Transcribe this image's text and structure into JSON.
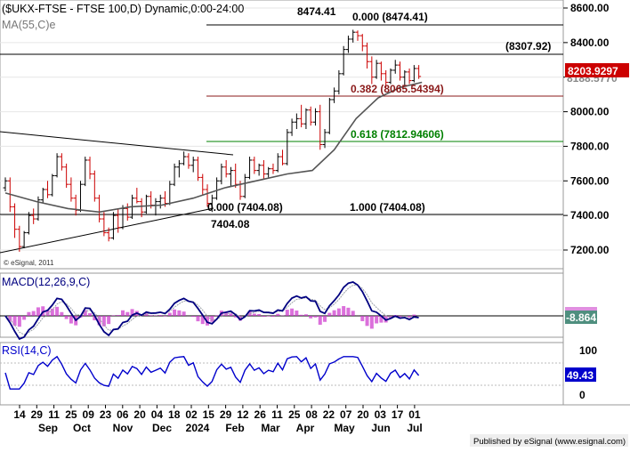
{
  "header": {
    "title": "($UKX-FTSE - FTSE 100,D) Dynamic,0:00-24:00",
    "ma_label": "MA(55,C)e"
  },
  "colors": {
    "up": "#000000",
    "down": "#cc0000",
    "ma": "#555555",
    "macd_line": "#000080",
    "macd_signal": "#9aa0a6",
    "macd_hist": "#cc33cc",
    "rsi": "#0000cc",
    "fib_red": "#8b1a1a",
    "fib_green": "#008000",
    "last_price_bg": "#cc0000"
  },
  "price_axis": {
    "ticks": [
      "8600.00",
      "8400.00",
      "8200.00",
      "8000.00",
      "7800.00",
      "7600.00",
      "7400.00",
      "7200.00"
    ],
    "last_price": "8203.9297",
    "hidden_label": "8188.5770"
  },
  "annotations": {
    "high": "8474.41",
    "low": "7404.08",
    "fib_0_top": "0.000 (8474.41)",
    "fib_382": "0.382 (8065.54394)",
    "fib_618": "0.618 (7812.94606)",
    "fib_0_bottom": "0.000 (7404.08)",
    "fib_1": "1.000 (7404.08)",
    "resistance": "(8307.92)",
    "copyright": "© eSignal, 2011"
  },
  "macd": {
    "label": "MACD(12,26,9,C)",
    "value": "-8.864"
  },
  "rsi": {
    "label": "RSI(14,C)",
    "value": "49.43",
    "ticks": [
      "100",
      "0"
    ]
  },
  "x_axis": {
    "days": [
      "14",
      "29",
      "11",
      "25",
      "09",
      "23",
      "06",
      "20",
      "04",
      "18",
      "02",
      "15",
      "29",
      "12",
      "26",
      "11",
      "25",
      "08",
      "22",
      "07",
      "20",
      "03",
      "17",
      "01"
    ],
    "months": [
      "Sep",
      "Oct",
      "Nov",
      "Dec",
      "2024",
      "Feb",
      "Mar",
      "Apr",
      "May",
      "Jun",
      "Jul"
    ]
  },
  "footer": {
    "published": "Published by eSignal (www.esignal.com)"
  },
  "chart_data": {
    "type": "candlestick",
    "instrument": "FTSE 100",
    "period": "D",
    "ylim": [
      7100,
      8650
    ],
    "indicators": [
      "MA(55,C)e",
      "MACD(12,26,9,C)",
      "RSI(14,C)"
    ],
    "moving_average_55": [
      [
        0,
        7530
      ],
      [
        20,
        7480
      ],
      [
        40,
        7440
      ],
      [
        60,
        7420
      ],
      [
        80,
        7450
      ],
      [
        100,
        7460
      ],
      [
        120,
        7500
      ],
      [
        140,
        7560
      ],
      [
        160,
        7600
      ],
      [
        180,
        7640
      ],
      [
        196,
        7660
      ],
      [
        210,
        7780
      ],
      [
        224,
        7960
      ],
      [
        238,
        8080
      ],
      [
        252,
        8140
      ],
      [
        266,
        8170
      ]
    ],
    "candles": [
      [
        0,
        7560,
        7620,
        7540,
        7600
      ],
      [
        3,
        7600,
        7620,
        7420,
        7450
      ],
      [
        6,
        7450,
        7470,
        7270,
        7320
      ],
      [
        9,
        7320,
        7340,
        7190,
        7220
      ],
      [
        12,
        7220,
        7310,
        7210,
        7300
      ],
      [
        15,
        7300,
        7420,
        7290,
        7400
      ],
      [
        18,
        7400,
        7440,
        7350,
        7380
      ],
      [
        21,
        7380,
        7510,
        7370,
        7490
      ],
      [
        24,
        7490,
        7560,
        7470,
        7550
      ],
      [
        27,
        7550,
        7600,
        7500,
        7520
      ],
      [
        30,
        7520,
        7640,
        7510,
        7630
      ],
      [
        33,
        7630,
        7760,
        7620,
        7740
      ],
      [
        36,
        7740,
        7760,
        7660,
        7680
      ],
      [
        39,
        7680,
        7700,
        7560,
        7580
      ],
      [
        42,
        7580,
        7620,
        7480,
        7500
      ],
      [
        45,
        7500,
        7520,
        7400,
        7430
      ],
      [
        48,
        7430,
        7600,
        7420,
        7580
      ],
      [
        51,
        7580,
        7740,
        7570,
        7720
      ],
      [
        54,
        7720,
        7740,
        7610,
        7640
      ],
      [
        57,
        7640,
        7660,
        7480,
        7500
      ],
      [
        60,
        7500,
        7520,
        7360,
        7380
      ],
      [
        63,
        7380,
        7420,
        7280,
        7300
      ],
      [
        66,
        7300,
        7330,
        7250,
        7270
      ],
      [
        69,
        7270,
        7420,
        7260,
        7400
      ],
      [
        72,
        7400,
        7440,
        7300,
        7330
      ],
      [
        75,
        7330,
        7460,
        7320,
        7440
      ],
      [
        78,
        7440,
        7470,
        7370,
        7390
      ],
      [
        81,
        7390,
        7520,
        7380,
        7500
      ],
      [
        84,
        7500,
        7560,
        7470,
        7480
      ],
      [
        87,
        7480,
        7500,
        7390,
        7420
      ],
      [
        90,
        7420,
        7520,
        7410,
        7510
      ],
      [
        93,
        7510,
        7540,
        7440,
        7460
      ],
      [
        96,
        7460,
        7500,
        7400,
        7480
      ],
      [
        99,
        7480,
        7520,
        7440,
        7500
      ],
      [
        102,
        7500,
        7540,
        7450,
        7470
      ],
      [
        105,
        7470,
        7600,
        7460,
        7580
      ],
      [
        108,
        7580,
        7700,
        7570,
        7680
      ],
      [
        111,
        7680,
        7720,
        7620,
        7700
      ],
      [
        114,
        7700,
        7770,
        7690,
        7740
      ],
      [
        117,
        7740,
        7760,
        7670,
        7690
      ],
      [
        120,
        7690,
        7740,
        7650,
        7720
      ],
      [
        123,
        7720,
        7740,
        7600,
        7620
      ],
      [
        126,
        7620,
        7640,
        7520,
        7550
      ],
      [
        129,
        7550,
        7580,
        7450,
        7470
      ],
      [
        132,
        7470,
        7520,
        7420,
        7500
      ],
      [
        135,
        7500,
        7620,
        7490,
        7600
      ],
      [
        138,
        7600,
        7700,
        7580,
        7680
      ],
      [
        141,
        7680,
        7720,
        7620,
        7640
      ],
      [
        144,
        7640,
        7680,
        7570,
        7660
      ],
      [
        147,
        7660,
        7700,
        7560,
        7580
      ],
      [
        150,
        7580,
        7600,
        7490,
        7510
      ],
      [
        153,
        7510,
        7640,
        7500,
        7620
      ],
      [
        156,
        7620,
        7740,
        7610,
        7720
      ],
      [
        159,
        7720,
        7740,
        7640,
        7660
      ],
      [
        162,
        7660,
        7700,
        7630,
        7690
      ],
      [
        165,
        7690,
        7720,
        7610,
        7640
      ],
      [
        168,
        7640,
        7680,
        7620,
        7670
      ],
      [
        171,
        7670,
        7700,
        7640,
        7660
      ],
      [
        174,
        7660,
        7760,
        7650,
        7740
      ],
      [
        177,
        7740,
        7780,
        7690,
        7700
      ],
      [
        180,
        7700,
        7900,
        7690,
        7880
      ],
      [
        183,
        7880,
        7960,
        7860,
        7940
      ],
      [
        186,
        7940,
        7990,
        7900,
        7960
      ],
      [
        189,
        7960,
        8040,
        7910,
        7930
      ],
      [
        192,
        7930,
        8020,
        7900,
        8010
      ],
      [
        195,
        8010,
        8030,
        7920,
        7940
      ],
      [
        198,
        7940,
        8020,
        7920,
        8000
      ],
      [
        201,
        8000,
        8040,
        7780,
        7810
      ],
      [
        204,
        7810,
        7900,
        7790,
        7880
      ],
      [
        207,
        7880,
        8080,
        7870,
        8070
      ],
      [
        210,
        8070,
        8140,
        8050,
        8120
      ],
      [
        213,
        8120,
        8240,
        8100,
        8220
      ],
      [
        216,
        8220,
        8380,
        8210,
        8360
      ],
      [
        219,
        8360,
        8440,
        8340,
        8420
      ],
      [
        222,
        8420,
        8474,
        8400,
        8460
      ],
      [
        225,
        8460,
        8470,
        8410,
        8440
      ],
      [
        228,
        8440,
        8450,
        8350,
        8380
      ],
      [
        231,
        8380,
        8400,
        8250,
        8290
      ],
      [
        234,
        8290,
        8320,
        8160,
        8200
      ],
      [
        237,
        8200,
        8300,
        8190,
        8280
      ],
      [
        240,
        8280,
        8290,
        8180,
        8220
      ],
      [
        243,
        8220,
        8240,
        8140,
        8170
      ],
      [
        246,
        8170,
        8250,
        8160,
        8240
      ],
      [
        249,
        8240,
        8300,
        8220,
        8270
      ],
      [
        252,
        8270,
        8290,
        8180,
        8200
      ],
      [
        255,
        8200,
        8240,
        8150,
        8230
      ],
      [
        258,
        8230,
        8250,
        8160,
        8180
      ],
      [
        261,
        8180,
        8270,
        8170,
        8250
      ],
      [
        264,
        8250,
        8270,
        8190,
        8204
      ]
    ]
  }
}
